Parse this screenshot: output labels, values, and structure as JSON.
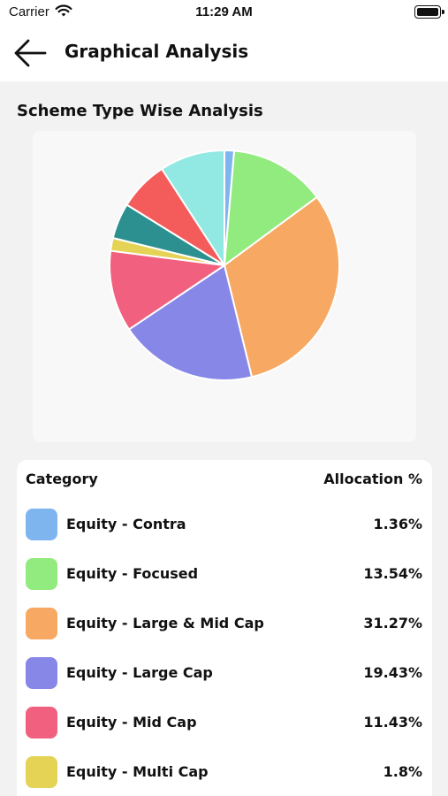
{
  "status_bar": {
    "carrier": "Carrier",
    "time": "11:29 AM",
    "icons": [
      "wifi-icon",
      "battery-icon"
    ]
  },
  "header": {
    "title": "Graphical Analysis",
    "back_icon": "arrow-left-icon"
  },
  "section_title": "Scheme Type Wise Analysis",
  "chart_data": {
    "type": "pie",
    "title": "",
    "slices": [
      {
        "name": "Equity - Contra",
        "value": 1.36,
        "color": "#7FB5EE"
      },
      {
        "name": "Equity - Focused",
        "value": 13.54,
        "color": "#92EB7E"
      },
      {
        "name": "Equity - Large & Mid Cap",
        "value": 31.27,
        "color": "#F7A862"
      },
      {
        "name": "Equity - Large Cap",
        "value": 19.43,
        "color": "#8787E8"
      },
      {
        "name": "Equity - Mid Cap",
        "value": 11.43,
        "color": "#F1607E"
      },
      {
        "name": "Equity - Multi Cap",
        "value": 1.8,
        "color": "#E4D355"
      },
      {
        "name": "",
        "value": 5.0,
        "color": "#2B908F"
      },
      {
        "name": "",
        "value": 7.0,
        "color": "#F45B5B"
      },
      {
        "name": "",
        "value": 9.17,
        "color": "#92E8E2"
      }
    ]
  },
  "table": {
    "header_category": "Category",
    "header_allocation": "Allocation %",
    "rows": [
      {
        "label": "Equity - Contra",
        "value": "1.36%",
        "color": "#7FB5EE"
      },
      {
        "label": "Equity - Focused",
        "value": "13.54%",
        "color": "#92EB7E"
      },
      {
        "label": "Equity - Large & Mid Cap",
        "value": "31.27%",
        "color": "#F7A862"
      },
      {
        "label": "Equity - Large Cap",
        "value": "19.43%",
        "color": "#8787E8"
      },
      {
        "label": "Equity - Mid Cap",
        "value": "11.43%",
        "color": "#F1607E"
      },
      {
        "label": "Equity - Multi Cap",
        "value": "1.8%",
        "color": "#E4D355"
      }
    ]
  }
}
